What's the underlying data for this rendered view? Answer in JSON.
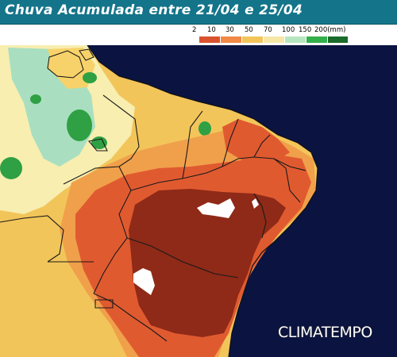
{
  "title": "Chuva Acumulada entre 21/04 e 25/04",
  "brand": "CLIMATEMPO",
  "legend": {
    "unit_label": "200(mm)",
    "labels": [
      "2",
      "10",
      "30",
      "50",
      "70",
      "100",
      "150",
      "200(mm)"
    ],
    "colors": [
      "#ffffff",
      "#d9542e",
      "#f08a46",
      "#f2c55a",
      "#f7e7a6",
      "#b6e6bf",
      "#33b04a",
      "#1b6b2a"
    ]
  },
  "map_colors": {
    "ocean": "#0b1340",
    "dark_brown": "#8e2a17",
    "red_orange": "#e05a30",
    "orange": "#f0a04a",
    "yellow": "#f7d26a",
    "light_yellow": "#f7eeb0",
    "light_green": "#a9dfc0",
    "green": "#2fa043",
    "no_rain": "#ffffff"
  }
}
